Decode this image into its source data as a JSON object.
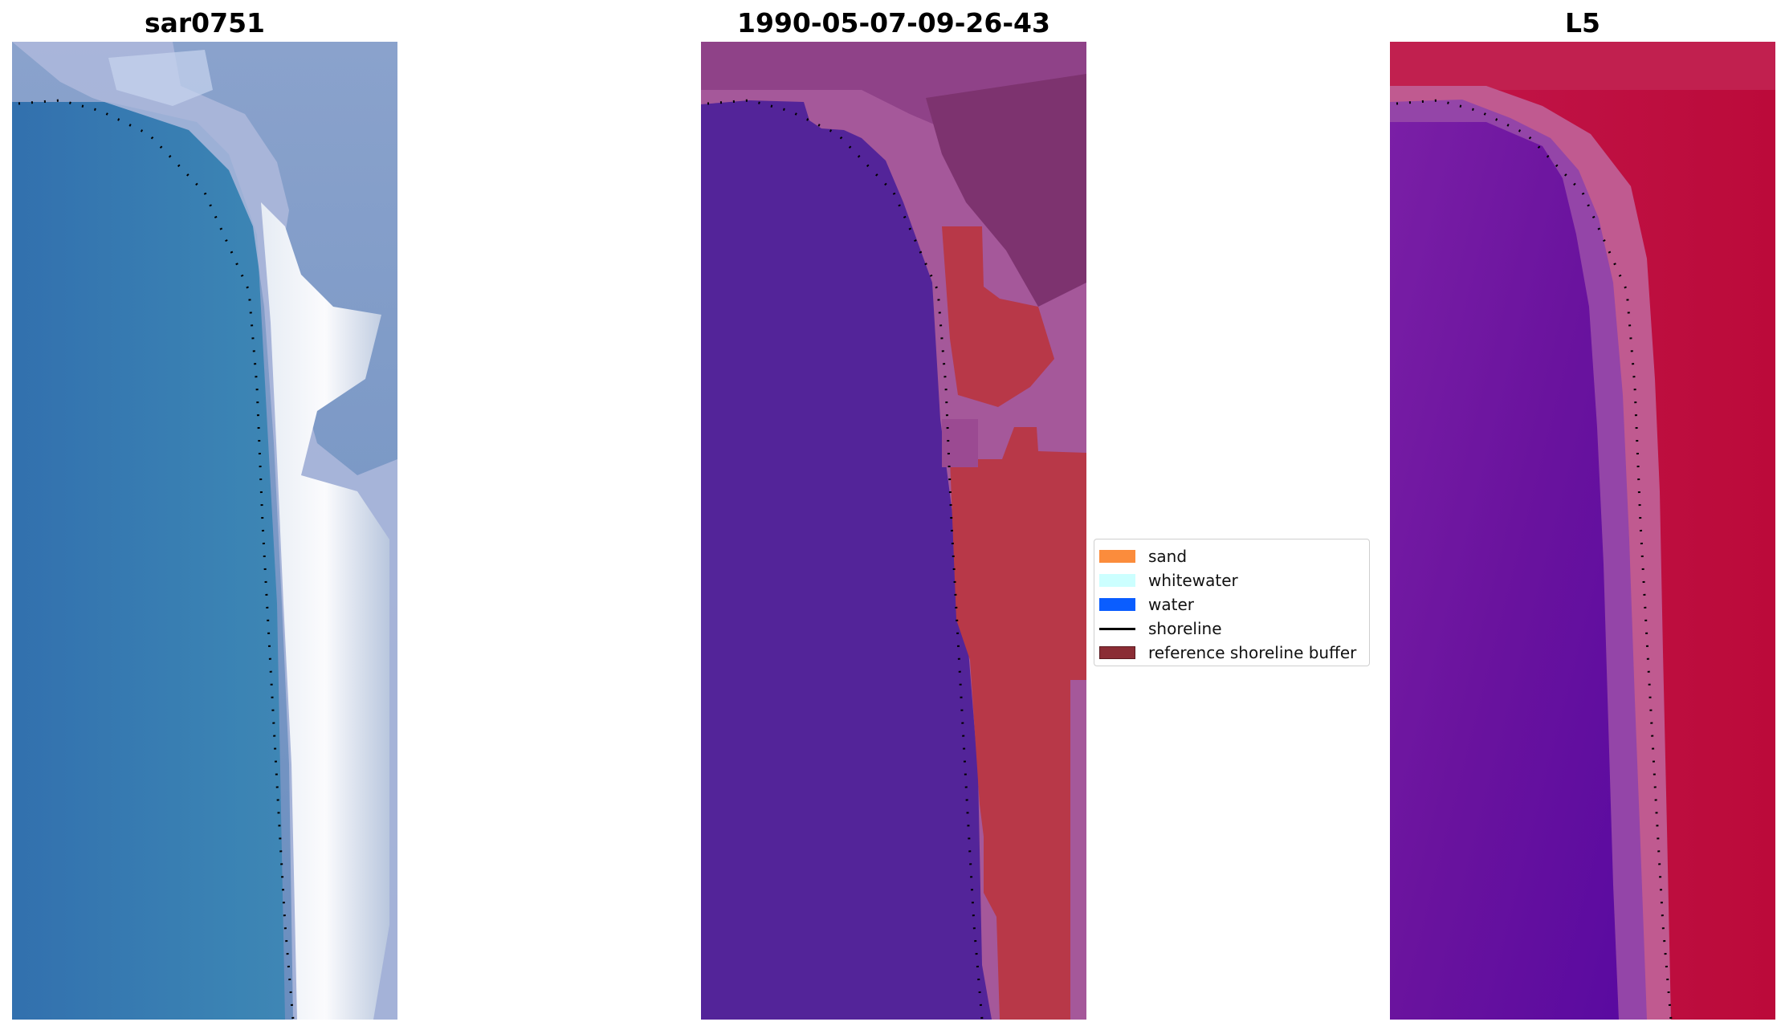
{
  "panels": [
    {
      "title": "sar0751"
    },
    {
      "title": "1990-05-07-09-26-43"
    },
    {
      "title": "L5"
    }
  ],
  "legend": {
    "items": [
      {
        "label": "sand",
        "color": "#fb8c3c",
        "kind": "patch"
      },
      {
        "label": "whitewater",
        "color": "#ccffff",
        "kind": "patch"
      },
      {
        "label": "water",
        "color": "#0a5dff",
        "kind": "patch"
      },
      {
        "label": "shoreline",
        "color": "#000000",
        "kind": "line"
      },
      {
        "label": "reference shoreline buffer",
        "color": "#8b2d35",
        "kind": "patch"
      }
    ]
  }
}
